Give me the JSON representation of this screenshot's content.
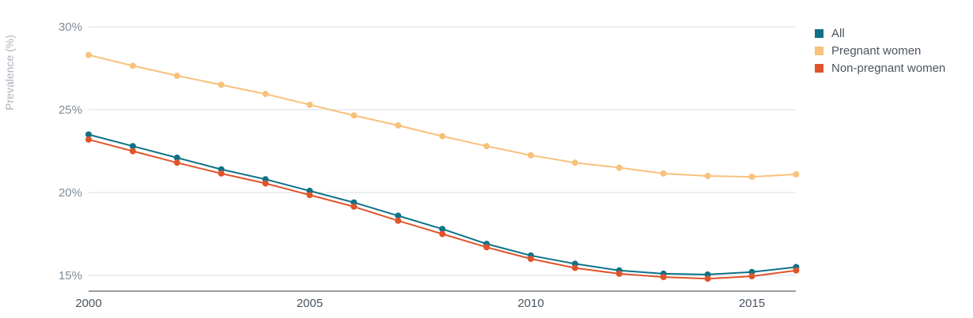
{
  "chart_data": {
    "type": "line",
    "title": "",
    "xlabel": "",
    "ylabel": "Prevalence (%)",
    "x": [
      2000,
      2001,
      2002,
      2003,
      2004,
      2005,
      2006,
      2007,
      2008,
      2009,
      2010,
      2011,
      2012,
      2013,
      2014,
      2015,
      2016
    ],
    "x_ticks": [
      "2000",
      "2005",
      "2010",
      "2015"
    ],
    "y_ticks": [
      "15%",
      "20%",
      "25%",
      "30%"
    ],
    "ylim": [
      14.0,
      30.5
    ],
    "grid": true,
    "legend_position": "top-right",
    "series": [
      {
        "name": "All",
        "color": "#0e7287",
        "values": [
          23.5,
          22.8,
          22.1,
          21.4,
          20.8,
          20.1,
          19.4,
          18.6,
          17.8,
          16.9,
          16.2,
          15.7,
          15.3,
          15.1,
          15.05,
          15.2,
          15.5
        ]
      },
      {
        "name": "Pregnant women",
        "color": "#f8c17c",
        "values": [
          28.3,
          27.65,
          27.05,
          26.5,
          25.95,
          25.3,
          24.65,
          24.05,
          23.4,
          22.8,
          22.25,
          21.8,
          21.5,
          21.15,
          21.0,
          20.95,
          21.1
        ]
      },
      {
        "name": "Non-pregnant women",
        "color": "#e1542a",
        "values": [
          23.2,
          22.5,
          21.8,
          21.15,
          20.55,
          19.85,
          19.15,
          18.3,
          17.5,
          16.7,
          16.0,
          15.45,
          15.1,
          14.9,
          14.8,
          14.95,
          15.3
        ]
      }
    ]
  }
}
